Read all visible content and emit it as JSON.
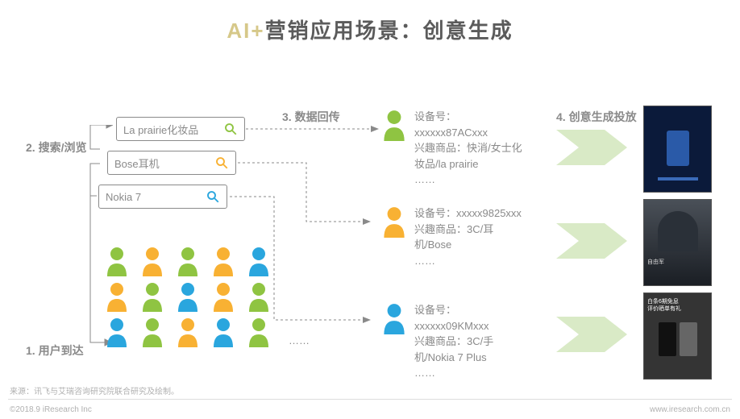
{
  "title": {
    "part1": "AI+",
    "part2": "营销应用场景：创意生成"
  },
  "steps": {
    "s1": "1. 用户到达",
    "s2": "2. 搜索/浏览",
    "s3": "3. 数据回传",
    "s4": "4. 创意生成投放"
  },
  "searches": [
    {
      "text": "La prairie化妆品",
      "icon_color": "#8fc442"
    },
    {
      "text": "Bose耳机",
      "icon_color": "#f8b133"
    },
    {
      "text": "Nokia 7",
      "icon_color": "#2aa6de"
    }
  ],
  "profiles": [
    {
      "color": "#8fc442",
      "device": "设备号：xxxxxx87ACxxx",
      "interest": "兴趣商品：快消/女士化妆品/la prairie",
      "more": "……"
    },
    {
      "color": "#f8b133",
      "device": "设备号：xxxxx9825xxx",
      "interest": "兴趣商品：3C/耳机/Bose",
      "more": "……"
    },
    {
      "color": "#2aa6de",
      "device": "设备号：xxxxxx09KMxxx",
      "interest": "兴趣商品：3C/手机/Nokia 7 Plus",
      "more": "……"
    }
  ],
  "person_colors": [
    "#8fc442",
    "#f8b133",
    "#8fc442",
    "#f8b133",
    "#2aa6de",
    "#f8b133",
    "#8fc442",
    "#2aa6de",
    "#f8b133",
    "#8fc442",
    "#2aa6de",
    "#8fc442",
    "#f8b133",
    "#2aa6de",
    "#8fc442"
  ],
  "dots": "……",
  "source": "来源：讯飞与艾瑞咨询研究院联合研究及绘制。",
  "copyright": "©2018.9 iResearch Inc",
  "website": "www.iresearch.com.cn",
  "arrow_color": "#d9eac6",
  "ads": [
    {
      "bg": "#0b1a3a",
      "accent": "#2a5aa8"
    },
    {
      "bg": "#2a3038",
      "accent": "#555"
    },
    {
      "bg": "#343434",
      "accent": "#888"
    }
  ]
}
